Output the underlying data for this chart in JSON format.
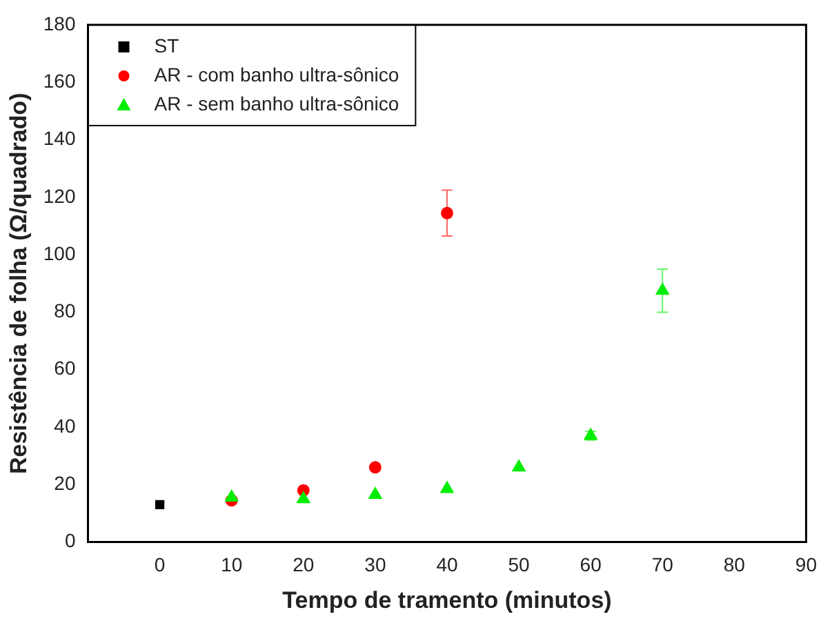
{
  "chart_data": {
    "type": "scatter",
    "xlabel": "Tempo de tramento (minutos)",
    "ylabel": "Resistência de folha (Ω/quadrado)",
    "xlim": [
      -10,
      90
    ],
    "xticks": [
      0,
      10,
      20,
      30,
      40,
      50,
      60,
      70,
      80,
      90
    ],
    "ylim": [
      0,
      180
    ],
    "yticks": [
      0,
      20,
      40,
      60,
      80,
      100,
      120,
      140,
      160,
      180
    ],
    "grid": false,
    "legend": "top left",
    "series": [
      {
        "name": "ST",
        "color": "#000000",
        "marker": "square",
        "x": [
          0
        ],
        "values": [
          13
        ]
      },
      {
        "name": "AR - com banho ultra-sônico",
        "color": "#ff0000",
        "marker": "circle",
        "x": [
          10,
          20,
          30,
          40
        ],
        "values": [
          14.5,
          18,
          26,
          114.5
        ],
        "errors": [
          null,
          null,
          null,
          8
        ]
      },
      {
        "name": "AR - sem banho ultra-sônico",
        "color": "#00ee00",
        "marker": "triangle",
        "x": [
          10,
          20,
          30,
          40,
          50,
          60,
          70
        ],
        "values": [
          15.5,
          15,
          16.5,
          18.5,
          26,
          37,
          87.5
        ],
        "errors": [
          null,
          null,
          null,
          null,
          null,
          1.5,
          7.5
        ]
      }
    ]
  }
}
